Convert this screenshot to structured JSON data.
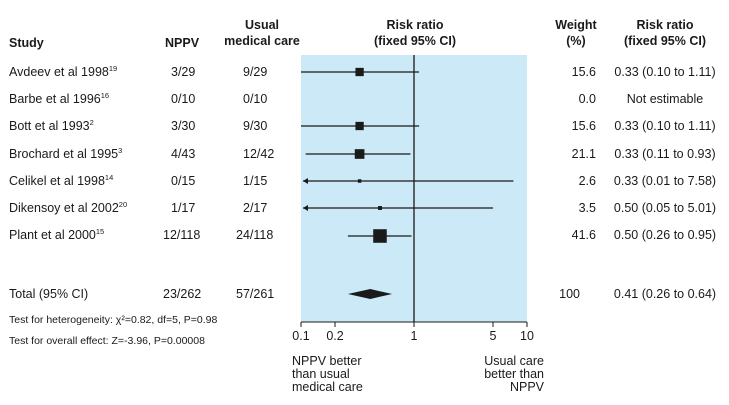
{
  "headers": {
    "study": "Study",
    "nppv": "NPPV",
    "usual_line1": "Usual",
    "usual_line2": "medical care",
    "rr_plot_line1": "Risk ratio",
    "rr_plot_line2": "(fixed 95% CI)",
    "weight_line1": "Weight",
    "weight_line2": "(%)",
    "rr_text_line1": "Risk ratio",
    "rr_text_line2": "(fixed 95% CI)"
  },
  "rows": [
    {
      "study": "Avdeev et al 1998",
      "ref": "19",
      "nppv": "3/29",
      "usual": "9/29",
      "weight": "15.6",
      "rr": "0.33 (0.10 to 1.11)"
    },
    {
      "study": "Barbe et al 1996",
      "ref": "16",
      "nppv": "0/10",
      "usual": "0/10",
      "weight": "0.0",
      "rr": "Not estimable"
    },
    {
      "study": "Bott et al 1993",
      "ref": "2",
      "nppv": "3/30",
      "usual": "9/30",
      "weight": "15.6",
      "rr": "0.33 (0.10 to 1.11)"
    },
    {
      "study": "Brochard et al 1995",
      "ref": "3",
      "nppv": "4/43",
      "usual": "12/42",
      "weight": "21.1",
      "rr": "0.33 (0.11 to 0.93)"
    },
    {
      "study": "Celikel et al 1998",
      "ref": "14",
      "nppv": "0/15",
      "usual": "1/15",
      "weight": "2.6",
      "rr": "0.33 (0.01 to 7.58)"
    },
    {
      "study": "Dikensoy et al 2002",
      "ref": "20",
      "nppv": "1/17",
      "usual": "2/17",
      "weight": "3.5",
      "rr": "0.50 (0.05 to 5.01)"
    },
    {
      "study": "Plant et al 2000",
      "ref": "15",
      "nppv": "12/118",
      "usual": "24/118",
      "weight": "41.6",
      "rr": "0.50 (0.26 to 0.95)"
    }
  ],
  "total": {
    "label": "Total (95% CI)",
    "nppv": "23/262",
    "usual": "57/261",
    "weight": "100",
    "rr": "0.41 (0.26 to 0.64)"
  },
  "footnotes": {
    "heterogeneity": "Test for heterogeneity: χ²=0.82, df=5, P=0.98",
    "overall": "Test for overall effect: Z=-3.96, P=0.00008"
  },
  "axis": {
    "ticks": [
      0.1,
      0.2,
      1,
      5,
      10
    ],
    "tick_labels": [
      "0.1",
      "0.2",
      "1",
      "5",
      "10"
    ],
    "left_label": "NPPV better than usual medical care",
    "right_label": "Usual care better than NPPV"
  },
  "colors": {
    "panel": "#cce9f7",
    "ink": "#1a1a1a"
  },
  "chart_data": {
    "type": "forest",
    "scale": "log",
    "xlim": [
      0.1,
      10
    ],
    "reference_line": 1,
    "series": [
      {
        "study": "Avdeev et al 1998",
        "rr": 0.33,
        "lo": 0.1,
        "hi": 1.11,
        "weight": 15.6
      },
      {
        "study": "Barbe et al 1996",
        "rr": null,
        "lo": null,
        "hi": null,
        "weight": 0.0
      },
      {
        "study": "Bott et al 1993",
        "rr": 0.33,
        "lo": 0.1,
        "hi": 1.11,
        "weight": 15.6
      },
      {
        "study": "Brochard et al 1995",
        "rr": 0.33,
        "lo": 0.11,
        "hi": 0.93,
        "weight": 21.1
      },
      {
        "study": "Celikel et al 1998",
        "rr": 0.33,
        "lo": 0.01,
        "hi": 7.58,
        "weight": 2.6
      },
      {
        "study": "Dikensoy et al 2002",
        "rr": 0.5,
        "lo": 0.05,
        "hi": 5.01,
        "weight": 3.5
      },
      {
        "study": "Plant et al 2000",
        "rr": 0.5,
        "lo": 0.26,
        "hi": 0.95,
        "weight": 41.6
      }
    ],
    "pooled": {
      "rr": 0.41,
      "lo": 0.26,
      "hi": 0.64
    }
  }
}
